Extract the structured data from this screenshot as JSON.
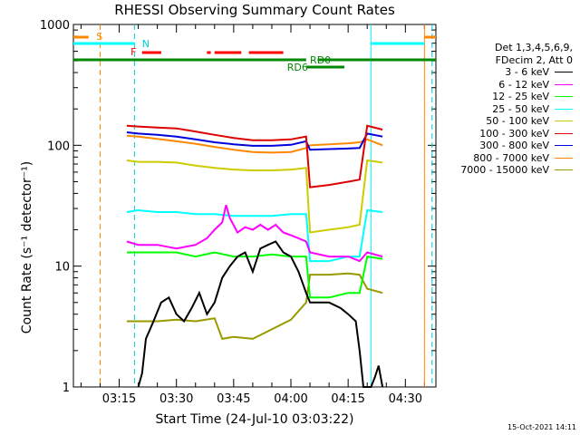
{
  "title": "RHESSI Observing Summary Count Rates",
  "timestamp": "15-Oct-2021 14:11",
  "legend": {
    "header1": "Det 1,3,4,5,6,9,",
    "header2": "FDecim 2, Att 0",
    "entries": [
      {
        "label": "3 - 6 keV",
        "color": "#000000"
      },
      {
        "label": "6 - 12 keV",
        "color": "#ff00ff"
      },
      {
        "label": "12 - 25 keV",
        "color": "#00ff00"
      },
      {
        "label": "25 - 50 keV",
        "color": "#00ffff"
      },
      {
        "label": "50 - 100 keV",
        "color": "#cccc00"
      },
      {
        "label": "100 - 300 keV",
        "color": "#dd0000"
      },
      {
        "label": "300 - 800 keV",
        "color": "#0000dd"
      },
      {
        "label": "800 - 7000 keV",
        "color": "#ff8800"
      },
      {
        "label": "7000 - 15000 keV",
        "color": "#999900"
      }
    ]
  },
  "chart_data": {
    "type": "line",
    "title": "RHESSI Observing Summary Count Rates",
    "xlabel": "Start Time (24-Jul-10 03:03:22)",
    "ylabel": "Count Rate (s⁻¹ detector⁻¹)",
    "yscale": "log",
    "ylim": [
      1,
      1000
    ],
    "xlim": [
      "03:03",
      "04:38"
    ],
    "x_ticks": [
      "03:15",
      "03:30",
      "03:45",
      "04:00",
      "04:15",
      "04:30"
    ],
    "y_ticks": [
      "1",
      "10",
      "100",
      "1000"
    ],
    "flag_labels": {
      "S": "S",
      "N": "N",
      "F": "F",
      "RD0": "RD0",
      "RD6": "RD6"
    },
    "series": [
      {
        "name": "3 - 6 keV",
        "color": "#000000",
        "points": [
          [
            "03:20",
            1.0
          ],
          [
            "03:21",
            1.3
          ],
          [
            "03:22",
            2.5
          ],
          [
            "03:24",
            3.5
          ],
          [
            "03:26",
            5
          ],
          [
            "03:28",
            5.5
          ],
          [
            "03:30",
            4
          ],
          [
            "03:32",
            3.5
          ],
          [
            "03:34",
            4.5
          ],
          [
            "03:36",
            6
          ],
          [
            "03:38",
            4
          ],
          [
            "03:40",
            5
          ],
          [
            "03:42",
            8
          ],
          [
            "03:44",
            10
          ],
          [
            "03:46",
            12
          ],
          [
            "03:48",
            13
          ],
          [
            "03:50",
            9
          ],
          [
            "03:52",
            14
          ],
          [
            "03:54",
            15
          ],
          [
            "03:56",
            16
          ],
          [
            "03:58",
            13
          ],
          [
            "04:00",
            12
          ],
          [
            "04:02",
            9
          ],
          [
            "04:04",
            6
          ],
          [
            "04:05",
            5
          ],
          [
            "04:07",
            5
          ],
          [
            "04:10",
            5
          ],
          [
            "04:13",
            4.5
          ],
          [
            "04:15",
            4
          ],
          [
            "04:17",
            3.5
          ],
          [
            "04:18",
            2
          ],
          [
            "04:19",
            1.0
          ],
          [
            "04:21",
            1.0
          ],
          [
            "04:22",
            1.2
          ],
          [
            "04:23",
            1.5
          ],
          [
            "04:24",
            1.0
          ]
        ]
      },
      {
        "name": "6 - 12 keV",
        "color": "#ff00ff",
        "points": [
          [
            "03:17",
            16
          ],
          [
            "03:20",
            15
          ],
          [
            "03:25",
            15
          ],
          [
            "03:30",
            14
          ],
          [
            "03:35",
            15
          ],
          [
            "03:38",
            17
          ],
          [
            "03:40",
            20
          ],
          [
            "03:42",
            23
          ],
          [
            "03:43",
            32
          ],
          [
            "03:44",
            25
          ],
          [
            "03:46",
            19
          ],
          [
            "03:48",
            21
          ],
          [
            "03:50",
            20
          ],
          [
            "03:52",
            22
          ],
          [
            "03:54",
            20
          ],
          [
            "03:56",
            22
          ],
          [
            "03:58",
            19
          ],
          [
            "04:00",
            18
          ],
          [
            "04:02",
            17
          ],
          [
            "04:04",
            16
          ],
          [
            "04:05",
            13
          ],
          [
            "04:10",
            12
          ],
          [
            "04:15",
            12
          ],
          [
            "04:18",
            11
          ],
          [
            "04:20",
            13
          ],
          [
            "04:24",
            12
          ]
        ]
      },
      {
        "name": "12 - 25 keV",
        "color": "#00ff00",
        "points": [
          [
            "03:17",
            13
          ],
          [
            "03:20",
            13
          ],
          [
            "03:25",
            13
          ],
          [
            "03:30",
            13
          ],
          [
            "03:35",
            12
          ],
          [
            "03:40",
            13
          ],
          [
            "03:45",
            12
          ],
          [
            "03:50",
            12
          ],
          [
            "03:55",
            12.5
          ],
          [
            "04:00",
            12
          ],
          [
            "04:04",
            12
          ],
          [
            "04:05",
            5.5
          ],
          [
            "04:10",
            5.5
          ],
          [
            "04:15",
            6
          ],
          [
            "04:18",
            6
          ],
          [
            "04:20",
            12
          ],
          [
            "04:24",
            11.5
          ]
        ]
      },
      {
        "name": "25 - 50 keV",
        "color": "#00ffff",
        "points": [
          [
            "03:17",
            28
          ],
          [
            "03:20",
            29
          ],
          [
            "03:25",
            28
          ],
          [
            "03:30",
            28
          ],
          [
            "03:35",
            27
          ],
          [
            "03:40",
            27
          ],
          [
            "03:45",
            26
          ],
          [
            "03:50",
            26
          ],
          [
            "03:55",
            26
          ],
          [
            "04:00",
            27
          ],
          [
            "04:04",
            27
          ],
          [
            "04:05",
            11
          ],
          [
            "04:10",
            11
          ],
          [
            "04:15",
            12
          ],
          [
            "04:18",
            12
          ],
          [
            "04:20",
            29
          ],
          [
            "04:24",
            28
          ]
        ]
      },
      {
        "name": "50 - 100 keV",
        "color": "#cccc00",
        "points": [
          [
            "03:17",
            75
          ],
          [
            "03:20",
            73
          ],
          [
            "03:25",
            73
          ],
          [
            "03:30",
            72
          ],
          [
            "03:35",
            68
          ],
          [
            "03:40",
            65
          ],
          [
            "03:45",
            63
          ],
          [
            "03:50",
            62
          ],
          [
            "03:55",
            62
          ],
          [
            "04:00",
            63
          ],
          [
            "04:04",
            65
          ],
          [
            "04:05",
            19
          ],
          [
            "04:10",
            20
          ],
          [
            "04:15",
            21
          ],
          [
            "04:18",
            22
          ],
          [
            "04:20",
            75
          ],
          [
            "04:24",
            72
          ]
        ]
      },
      {
        "name": "100 - 300 keV",
        "color": "#dd0000",
        "points": [
          [
            "03:17",
            145
          ],
          [
            "03:20",
            143
          ],
          [
            "03:25",
            140
          ],
          [
            "03:30",
            138
          ],
          [
            "03:35",
            130
          ],
          [
            "03:40",
            122
          ],
          [
            "03:45",
            115
          ],
          [
            "03:50",
            110
          ],
          [
            "03:55",
            110
          ],
          [
            "04:00",
            112
          ],
          [
            "04:04",
            118
          ],
          [
            "04:05",
            45
          ],
          [
            "04:10",
            47
          ],
          [
            "04:15",
            50
          ],
          [
            "04:18",
            52
          ],
          [
            "04:20",
            145
          ],
          [
            "04:24",
            135
          ]
        ]
      },
      {
        "name": "300 - 800 keV",
        "color": "#0000dd",
        "points": [
          [
            "03:17",
            128
          ],
          [
            "03:20",
            125
          ],
          [
            "03:25",
            122
          ],
          [
            "03:30",
            118
          ],
          [
            "03:35",
            112
          ],
          [
            "03:40",
            106
          ],
          [
            "03:45",
            102
          ],
          [
            "03:50",
            99
          ],
          [
            "03:55",
            99
          ],
          [
            "04:00",
            101
          ],
          [
            "04:04",
            108
          ],
          [
            "04:05",
            92
          ],
          [
            "04:10",
            93
          ],
          [
            "04:15",
            94
          ],
          [
            "04:18",
            95
          ],
          [
            "04:20",
            125
          ],
          [
            "04:24",
            118
          ]
        ]
      },
      {
        "name": "800 - 7000 keV",
        "color": "#ff8800",
        "points": [
          [
            "03:17",
            120
          ],
          [
            "03:20",
            118
          ],
          [
            "03:25",
            113
          ],
          [
            "03:30",
            108
          ],
          [
            "03:35",
            103
          ],
          [
            "03:40",
            97
          ],
          [
            "03:45",
            92
          ],
          [
            "03:50",
            88
          ],
          [
            "03:55",
            87
          ],
          [
            "04:00",
            88
          ],
          [
            "04:04",
            95
          ],
          [
            "04:05",
            100
          ],
          [
            "04:10",
            102
          ],
          [
            "04:15",
            104
          ],
          [
            "04:18",
            106
          ],
          [
            "04:20",
            112
          ],
          [
            "04:24",
            100
          ]
        ]
      },
      {
        "name": "7000 - 15000 keV",
        "color": "#999900",
        "points": [
          [
            "03:17",
            3.5
          ],
          [
            "03:20",
            3.5
          ],
          [
            "03:25",
            3.5
          ],
          [
            "03:30",
            3.6
          ],
          [
            "03:35",
            3.5
          ],
          [
            "03:40",
            3.7
          ],
          [
            "03:42",
            2.5
          ],
          [
            "03:45",
            2.6
          ],
          [
            "03:50",
            2.5
          ],
          [
            "03:55",
            3.0
          ],
          [
            "04:00",
            3.6
          ],
          [
            "04:04",
            5
          ],
          [
            "04:05",
            8.5
          ],
          [
            "04:10",
            8.5
          ],
          [
            "04:15",
            8.7
          ],
          [
            "04:18",
            8.5
          ],
          [
            "04:20",
            6.5
          ],
          [
            "04:24",
            6
          ]
        ]
      }
    ]
  }
}
